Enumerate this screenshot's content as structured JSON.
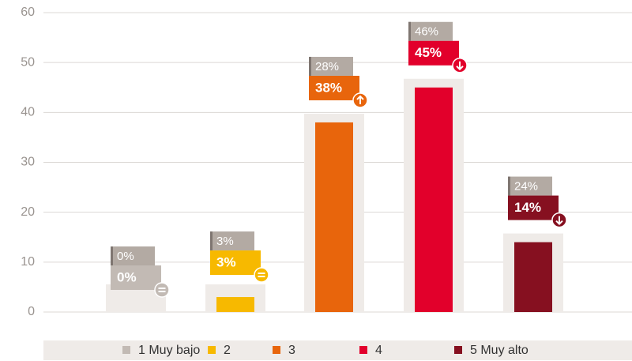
{
  "chart_data": {
    "type": "bar",
    "categories": [
      "1 Muy bajo",
      "2",
      "3",
      "4",
      "5 Muy alto"
    ],
    "colors": [
      "#c2bab4",
      "#f7b900",
      "#e8650c",
      "#e2002b",
      "#861020"
    ],
    "values": [
      0,
      3,
      38,
      45,
      14
    ],
    "value_labels": [
      "0%",
      "3%",
      "38%",
      "45%",
      "14%"
    ],
    "previous_values": [
      0,
      3,
      28,
      46,
      24
    ],
    "previous_labels": [
      "0%",
      "3%",
      "28%",
      "46%",
      "24%"
    ],
    "ylim": [
      0,
      60
    ],
    "yticks": [
      0,
      10,
      20,
      30,
      40,
      50,
      60
    ],
    "grid": true
  }
}
